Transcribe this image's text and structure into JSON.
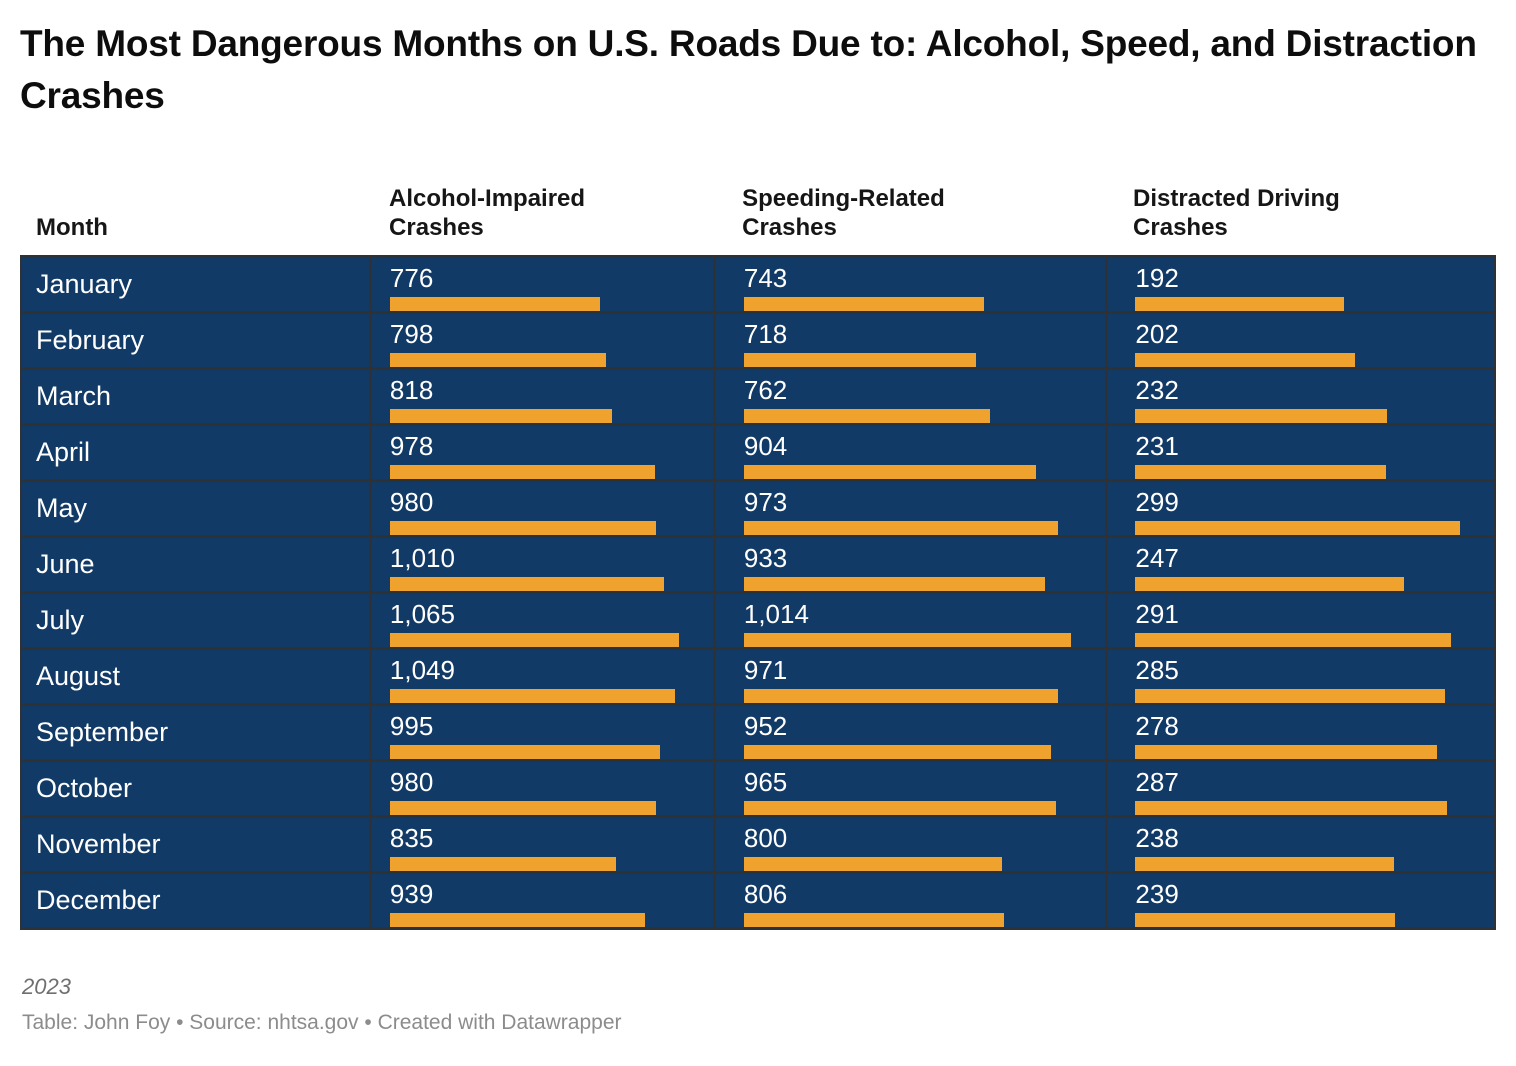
{
  "title": "The Most Dangerous Months on U.S. Roads Due to: Alcohol, Speed, and Distraction Crashes",
  "table": {
    "columns": [
      "Month",
      "Alcohol-Impaired Crashes",
      "Speeding-Related Crashes",
      "Distracted Driving Crashes"
    ],
    "rows": [
      [
        "January",
        "776",
        "743",
        "192"
      ],
      [
        "February",
        "798",
        "718",
        "202"
      ],
      [
        "March",
        "818",
        "762",
        "232"
      ],
      [
        "April",
        "978",
        "904",
        "231"
      ],
      [
        "May",
        "980",
        "973",
        "299"
      ],
      [
        "June",
        "1,010",
        "933",
        "247"
      ],
      [
        "July",
        "1,065",
        "1,014",
        "291"
      ],
      [
        "August",
        "1,049",
        "971",
        "285"
      ],
      [
        "September",
        "995",
        "952",
        "278"
      ],
      [
        "October",
        "980",
        "965",
        "287"
      ],
      [
        "November",
        "835",
        "800",
        "238"
      ],
      [
        "December",
        "939",
        "806",
        "239"
      ]
    ]
  },
  "footer": {
    "note": "2023",
    "attribution": "Table: John Foy • Source: nhtsa.gov • Created with Datawrapper"
  },
  "colors": {
    "page_bg": "#FFFFFF",
    "row_bg": "#123A67",
    "bar": "#F0A22E",
    "separator": "#2E3235",
    "title": "#0D0D0D",
    "header_text": "#161616",
    "value_text": "#FFFFFF",
    "note_text": "#6F6F6F",
    "attribution_text": "#8C8C8C"
  },
  "chart_data": {
    "type": "table",
    "title": "The Most Dangerous Months on U.S. Roads Due to: Alcohol, Speed, and Distraction Crashes",
    "categories": [
      "January",
      "February",
      "March",
      "April",
      "May",
      "June",
      "July",
      "August",
      "September",
      "October",
      "November",
      "December"
    ],
    "series": [
      {
        "name": "Alcohol-Impaired Crashes",
        "values": [
          776,
          798,
          818,
          978,
          980,
          1010,
          1065,
          1049,
          995,
          980,
          835,
          939
        ]
      },
      {
        "name": "Speeding-Related Crashes",
        "values": [
          743,
          718,
          762,
          904,
          973,
          933,
          1014,
          971,
          952,
          965,
          800,
          806
        ]
      },
      {
        "name": "Distracted Driving Crashes",
        "values": [
          192,
          202,
          232,
          231,
          299,
          247,
          291,
          285,
          278,
          287,
          238,
          239
        ]
      }
    ],
    "bar_scaling": "each column's bars are proportional to that column's maximum value",
    "note": "2023",
    "attribution": "Table: John Foy • Source: nhtsa.gov • Created with Datawrapper"
  }
}
